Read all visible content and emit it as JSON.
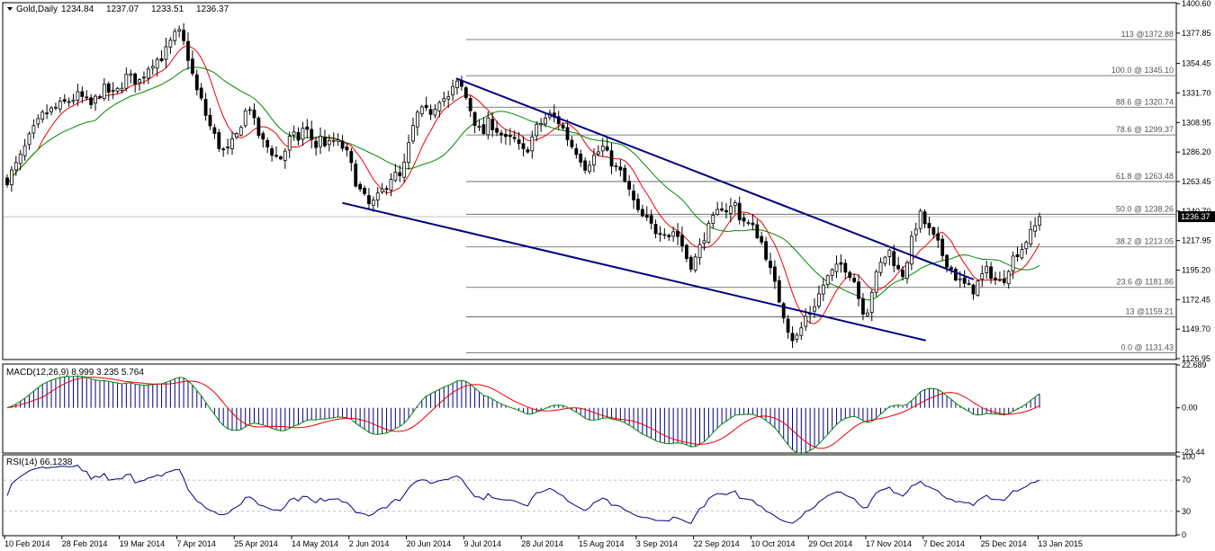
{
  "chart_data": [
    {
      "type": "candlestick",
      "header": {
        "symbol": "Gold,Daily",
        "ohlc": [
          "1234.84",
          "1237.07",
          "1233.51",
          "1236.37"
        ]
      },
      "y_ticks": [
        "1400.60",
        "1377.85",
        "1354.45",
        "1331.70",
        "1308.95",
        "1286.20",
        "1263.45",
        "1240.70",
        "1217.95",
        "1195.20",
        "1172.45",
        "1149.70",
        "1126.95"
      ],
      "ylim": [
        1126.95,
        1400.6
      ],
      "current_price": "1236.37",
      "last_close": 1236.37,
      "fibonacci_levels": [
        {
          "label": "113 @1372.88",
          "value": 1372.88
        },
        {
          "label": "100.0 @ 1345.10",
          "value": 1345.1
        },
        {
          "label": "88.6 @ 1320.74",
          "value": 1320.74
        },
        {
          "label": "78.6 @ 1299.37",
          "value": 1299.37
        },
        {
          "label": "61.8 @ 1263.48",
          "value": 1263.48
        },
        {
          "label": "50.0 @ 1238.26",
          "value": 1238.26
        },
        {
          "label": "38.2 @ 1213.05",
          "value": 1213.05
        },
        {
          "label": "23.6 @ 1181.86",
          "value": 1181.86
        },
        {
          "label": "13 @1159.21",
          "value": 1159.21
        },
        {
          "label": "0.0 @ 1131.43",
          "value": 1131.43
        }
      ],
      "price_path": [
        [
          0,
          1265
        ],
        [
          4,
          1280
        ],
        [
          8,
          1300
        ],
        [
          12,
          1315
        ],
        [
          16,
          1320
        ],
        [
          20,
          1325
        ],
        [
          24,
          1330
        ],
        [
          28,
          1322
        ],
        [
          32,
          1335
        ],
        [
          36,
          1330
        ],
        [
          40,
          1345
        ],
        [
          44,
          1340
        ],
        [
          48,
          1355
        ],
        [
          52,
          1360
        ],
        [
          55,
          1372
        ],
        [
          57,
          1380
        ],
        [
          59,
          1370
        ],
        [
          61,
          1355
        ],
        [
          63,
          1335
        ],
        [
          65,
          1325
        ],
        [
          67,
          1310
        ],
        [
          69,
          1300
        ],
        [
          71,
          1290
        ],
        [
          73,
          1285
        ],
        [
          75,
          1292
        ],
        [
          77,
          1300
        ],
        [
          79,
          1315
        ],
        [
          81,
          1322
        ],
        [
          83,
          1305
        ],
        [
          85,
          1295
        ],
        [
          87,
          1290
        ],
        [
          89,
          1285
        ],
        [
          91,
          1280
        ],
        [
          93,
          1288
        ],
        [
          95,
          1300
        ],
        [
          97,
          1295
        ],
        [
          99,
          1305
        ],
        [
          101,
          1300
        ],
        [
          103,
          1290
        ],
        [
          105,
          1298
        ],
        [
          107,
          1290
        ],
        [
          109,
          1295
        ],
        [
          111,
          1292
        ],
        [
          113,
          1288
        ],
        [
          115,
          1275
        ],
        [
          117,
          1260
        ],
        [
          119,
          1252
        ],
        [
          121,
          1245
        ],
        [
          123,
          1248
        ],
        [
          125,
          1255
        ],
        [
          127,
          1262
        ],
        [
          129,
          1270
        ],
        [
          131,
          1265
        ],
        [
          133,
          1278
        ],
        [
          135,
          1300
        ],
        [
          137,
          1315
        ],
        [
          139,
          1318
        ],
        [
          141,
          1316
        ],
        [
          143,
          1322
        ],
        [
          145,
          1330
        ],
        [
          147,
          1325
        ],
        [
          149,
          1335
        ],
        [
          151,
          1340
        ],
        [
          153,
          1330
        ],
        [
          155,
          1318
        ],
        [
          157,
          1305
        ],
        [
          159,
          1300
        ],
        [
          161,
          1310
        ],
        [
          163,
          1305
        ],
        [
          165,
          1300
        ],
        [
          167,
          1294
        ],
        [
          169,
          1297
        ],
        [
          171,
          1290
        ],
        [
          173,
          1285
        ],
        [
          175,
          1295
        ],
        [
          177,
          1305
        ],
        [
          179,
          1310
        ],
        [
          181,
          1315
        ],
        [
          183,
          1312
        ],
        [
          185,
          1308
        ],
        [
          187,
          1298
        ],
        [
          189,
          1290
        ],
        [
          191,
          1285
        ],
        [
          193,
          1275
        ],
        [
          195,
          1280
        ],
        [
          197,
          1285
        ],
        [
          199,
          1290
        ],
        [
          201,
          1282
        ],
        [
          203,
          1275
        ],
        [
          205,
          1270
        ],
        [
          207,
          1260
        ],
        [
          209,
          1250
        ],
        [
          211,
          1238
        ],
        [
          213,
          1235
        ],
        [
          215,
          1230
        ],
        [
          217,
          1225
        ],
        [
          219,
          1228
        ],
        [
          221,
          1222
        ],
        [
          223,
          1226
        ],
        [
          225,
          1218
        ],
        [
          227,
          1205
        ],
        [
          229,
          1198
        ],
        [
          231,
          1210
        ],
        [
          233,
          1222
        ],
        [
          235,
          1230
        ],
        [
          237,
          1238
        ],
        [
          239,
          1245
        ],
        [
          241,
          1240
        ],
        [
          243,
          1248
        ],
        [
          245,
          1235
        ],
        [
          247,
          1232
        ],
        [
          249,
          1228
        ],
        [
          251,
          1222
        ],
        [
          253,
          1212
        ],
        [
          255,
          1195
        ],
        [
          257,
          1180
        ],
        [
          259,
          1165
        ],
        [
          261,
          1150
        ],
        [
          263,
          1140
        ],
        [
          265,
          1148
        ],
        [
          267,
          1160
        ],
        [
          269,
          1165
        ],
        [
          271,
          1175
        ],
        [
          273,
          1185
        ],
        [
          275,
          1192
        ],
        [
          277,
          1196
        ],
        [
          279,
          1200
        ],
        [
          281,
          1195
        ],
        [
          283,
          1188
        ],
        [
          285,
          1170
        ],
        [
          287,
          1160
        ],
        [
          289,
          1180
        ],
        [
          291,
          1195
        ],
        [
          293,
          1205
        ],
        [
          295,
          1210
        ],
        [
          297,
          1198
        ],
        [
          299,
          1190
        ],
        [
          301,
          1205
        ],
        [
          303,
          1225
        ],
        [
          305,
          1238
        ],
        [
          307,
          1230
        ],
        [
          309,
          1222
        ],
        [
          311,
          1215
        ],
        [
          313,
          1205
        ],
        [
          315,
          1198
        ],
        [
          317,
          1190
        ],
        [
          319,
          1185
        ],
        [
          321,
          1182
        ],
        [
          323,
          1180
        ],
        [
          325,
          1188
        ],
        [
          327,
          1195
        ],
        [
          329,
          1192
        ],
        [
          331,
          1185
        ],
        [
          333,
          1188
        ],
        [
          335,
          1200
        ],
        [
          337,
          1208
        ],
        [
          339,
          1212
        ],
        [
          341,
          1220
        ],
        [
          343,
          1226
        ],
        [
          345,
          1236
        ]
      ],
      "drawings": [
        {
          "type": "trendline",
          "from": [
            112,
            1247
          ],
          "to": [
            307,
            1141
          ]
        },
        {
          "type": "trendline",
          "from": [
            150,
            1343
          ],
          "to": [
            323,
            1188
          ]
        }
      ],
      "x_ticks": [
        "10 Feb 2014",
        "28 Feb 2014",
        "19 Mar 2014",
        "7 Apr 2014",
        "25 Apr 2014",
        "14 May 2014",
        "2 Jun 2014",
        "20 Jun 2014",
        "9 Jul 2014",
        "28 Jul 2014",
        "15 Aug 2014",
        "3 Sep 2014",
        "22 Sep 2014",
        "10 Oct 2014",
        "29 Oct 2014",
        "17 Nov 2014",
        "7 Dec 2014",
        "25 Dec 2014",
        "13 Jan 2015"
      ],
      "colors": {
        "candles": "#000000",
        "ma_fast": "#ee0000",
        "ma_slow": "#008800",
        "trendlines": "#000080",
        "fib": "#555555"
      }
    },
    {
      "type": "macd",
      "label": "MACD(12,26,9) 8.999 3.235 5.764",
      "y_ticks": [
        "22.689",
        "0.00",
        "-23.44"
      ],
      "ylim": [
        -23.44,
        22.689
      ],
      "colors": {
        "macd": "#008800",
        "signal": "#ee0000",
        "histogram": "#000080"
      }
    },
    {
      "type": "line",
      "label": "RSI(14) 66.1238",
      "y_ticks": [
        "100",
        "70",
        "30",
        "0"
      ],
      "ylim": [
        0,
        100
      ],
      "levels": [
        70,
        30
      ],
      "colors": {
        "rsi": "#000080"
      }
    }
  ]
}
